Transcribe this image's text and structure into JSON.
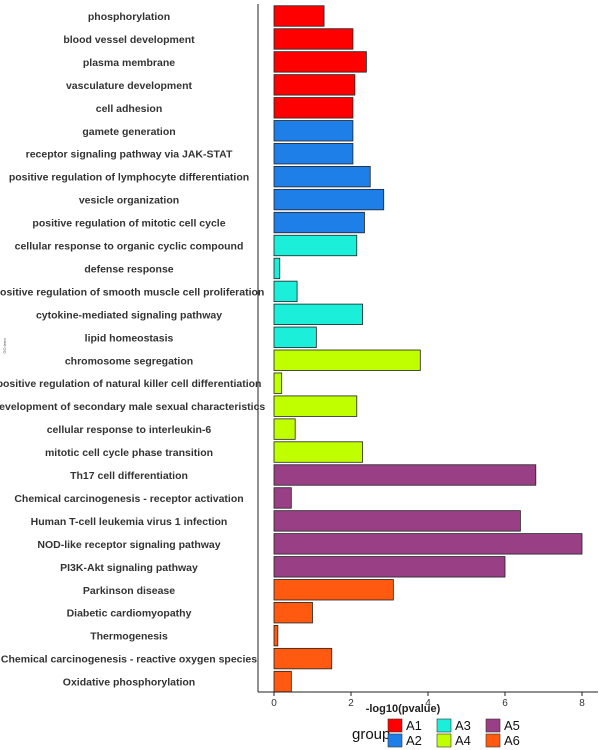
{
  "chart_data": {
    "type": "bar",
    "orientation": "horizontal",
    "title": "",
    "xlabel": "-log10(pvalue)",
    "ylabel": "GO term",
    "xlim": [
      0,
      8
    ],
    "xticks": [
      "0",
      "2",
      "4",
      "6",
      "8"
    ],
    "categories": [
      "phosphorylation",
      "blood vessel development",
      "plasma membrane",
      "vasculature development",
      "cell adhesion",
      "gamete generation",
      "receptor signaling pathway via JAK-STAT",
      "positive regulation of lymphocyte differentiation",
      "vesicle organization",
      "positive regulation of mitotic cell cycle",
      "cellular response to organic cyclic compound",
      "defense response",
      "positive regulation of smooth muscle cell proliferation",
      "cytokine-mediated signaling pathway",
      "lipid homeostasis",
      "chromosome segregation",
      "positive regulation of natural killer cell differentiation",
      "development of secondary male sexual characteristics",
      "cellular response to interleukin-6",
      "mitotic cell cycle phase transition",
      "Th17 cell differentiation",
      "Chemical carcinogenesis - receptor activation",
      "Human T-cell leukemia virus 1 infection",
      "NOD-like receptor signaling pathway",
      "PI3K-Akt signaling pathway",
      "Parkinson disease",
      "Diabetic cardiomyopathy",
      "Thermogenesis",
      "Chemical carcinogenesis - reactive oxygen species",
      "Oxidative phosphorylation"
    ],
    "values": [
      1.3,
      2.05,
      2.4,
      2.1,
      2.05,
      2.05,
      2.05,
      2.5,
      2.85,
      2.35,
      2.15,
      0.15,
      0.6,
      2.3,
      1.1,
      3.8,
      0.2,
      2.15,
      0.55,
      2.3,
      6.8,
      0.45,
      6.4,
      8.0,
      6.0,
      3.1,
      1.0,
      0.1,
      1.5,
      0.45
    ],
    "groups": [
      "A1",
      "A1",
      "A1",
      "A1",
      "A1",
      "A2",
      "A2",
      "A2",
      "A2",
      "A2",
      "A3",
      "A3",
      "A3",
      "A3",
      "A3",
      "A4",
      "A4",
      "A4",
      "A4",
      "A4",
      "A5",
      "A5",
      "A5",
      "A5",
      "A5",
      "A6",
      "A6",
      "A6",
      "A6",
      "A6"
    ],
    "group_colors": {
      "A1": "#FF0000",
      "A2": "#1E7FE8",
      "A3": "#1BEFD9",
      "A4": "#BFFF00",
      "A5": "#993F86",
      "A6": "#FF5A0F"
    },
    "legend": {
      "title": "group",
      "placement": "bottom",
      "entries": [
        "A1",
        "A2",
        "A3",
        "A4",
        "A5",
        "A6"
      ]
    },
    "grid": false
  }
}
